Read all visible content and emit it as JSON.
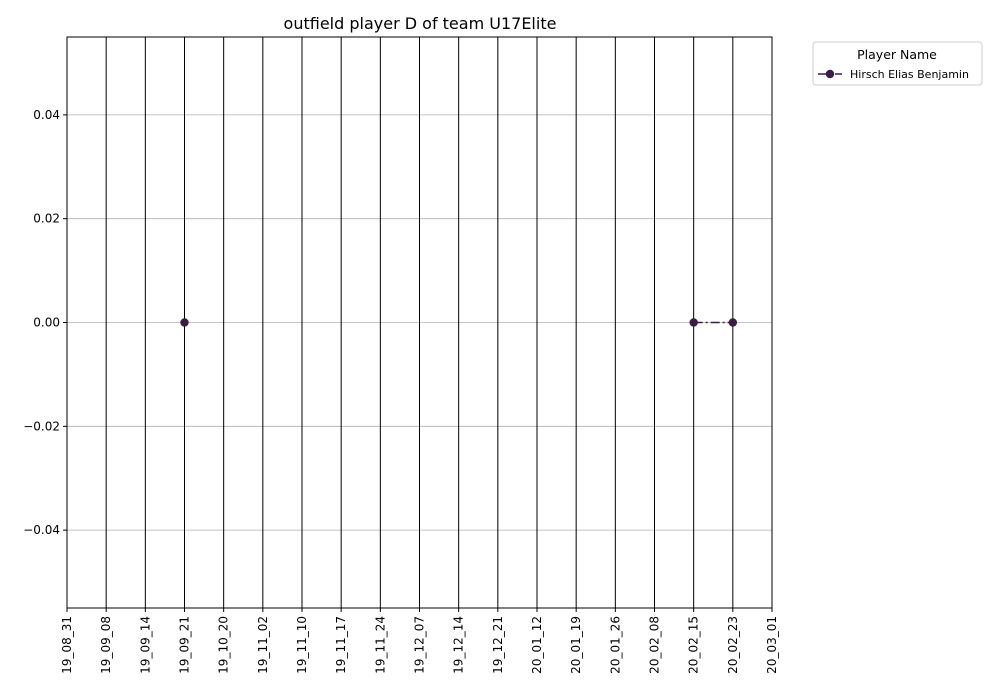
{
  "chart_data": {
    "type": "line",
    "title": "outfield player D of team U17Elite",
    "xlabel": "",
    "ylabel": "",
    "categories": [
      "19_08_31",
      "19_09_08",
      "19_09_14",
      "19_09_21",
      "19_10_20",
      "19_11_02",
      "19_11_10",
      "19_11_17",
      "19_11_24",
      "19_12_07",
      "19_12_14",
      "19_12_21",
      "20_01_12",
      "20_01_19",
      "20_01_26",
      "20_02_08",
      "20_02_15",
      "20_02_23",
      "20_03_01"
    ],
    "ylim": [
      -0.055,
      0.055
    ],
    "yticks": [
      "0.04",
      "0.02",
      "0.00",
      "−0.02",
      "−0.04"
    ],
    "ytick_values": [
      0.04,
      0.02,
      0.0,
      -0.02,
      -0.04
    ],
    "grid": true,
    "vertical_lines_at_categories": true,
    "legend": {
      "title": "Player Name",
      "placement": "outside-top-right"
    },
    "series": [
      {
        "name": "Hirsch Elias Benjamin",
        "color": "#3b1c45",
        "line_style": "dashdot",
        "marker": "circle",
        "points": [
          {
            "x": "19_09_21",
            "y": 0.0
          },
          {
            "x": "20_02_15",
            "y": 0.0
          },
          {
            "x": "20_02_23",
            "y": 0.0
          }
        ],
        "segments": [
          [
            "20_02_15",
            "20_02_23"
          ]
        ]
      }
    ]
  }
}
